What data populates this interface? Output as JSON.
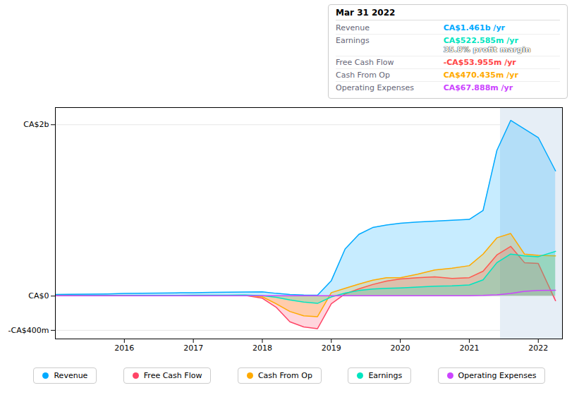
{
  "chart_data": {
    "type": "area",
    "annotations": {
      "heading": "Mar 31 2022",
      "rows": [
        {
          "label": "Revenue",
          "text": "CA$1.461b /yr",
          "color": "#00aaff"
        },
        {
          "label": "Earnings",
          "text": "CA$522.585m /yr",
          "color": "#00e5c0",
          "subtext": "35.8% profit margin",
          "subtext_color": "#ffffff"
        },
        {
          "label": "Free Cash Flow",
          "text": "-CA$53.955m /yr",
          "color": "#ff4444"
        },
        {
          "label": "Cash From Op",
          "text": "CA$470.435m /yr",
          "color": "#ffaa00"
        },
        {
          "label": "Operating Expenses",
          "text": "CA$67.888m /yr",
          "color": "#cc44ff"
        }
      ]
    },
    "x": [
      2015.0,
      2015.2,
      2015.5,
      2015.75,
      2016.0,
      2016.25,
      2016.5,
      2016.75,
      2017.0,
      2017.25,
      2017.5,
      2017.75,
      2018.0,
      2018.2,
      2018.4,
      2018.6,
      2018.8,
      2019.0,
      2019.2,
      2019.4,
      2019.6,
      2019.8,
      2020.0,
      2020.25,
      2020.5,
      2020.75,
      2021.0,
      2021.2,
      2021.4,
      2021.6,
      2021.8,
      2022.0,
      2022.25
    ],
    "series": [
      {
        "name": "Revenue",
        "color": "#00aaff",
        "type": "area",
        "values": [
          18,
          20,
          22,
          25,
          30,
          33,
          36,
          38,
          40,
          43,
          46,
          48,
          50,
          32,
          18,
          12,
          10,
          180,
          550,
          720,
          800,
          830,
          850,
          865,
          875,
          885,
          895,
          1000,
          1700,
          2050,
          1950,
          1850,
          1461
        ]
      },
      {
        "name": "Free Cash Flow",
        "color": "#ff4466",
        "type": "area",
        "values": [
          4,
          5,
          5,
          6,
          6,
          7,
          7,
          7,
          8,
          8,
          8,
          9,
          -25,
          -130,
          -300,
          -360,
          -380,
          -90,
          25,
          85,
          135,
          175,
          200,
          215,
          225,
          205,
          215,
          290,
          480,
          580,
          390,
          380,
          -54
        ]
      },
      {
        "name": "Cash From Op",
        "color": "#ffaa00",
        "type": "area",
        "values": [
          4,
          5,
          5,
          6,
          6,
          7,
          7,
          7,
          8,
          8,
          9,
          9,
          -8,
          -90,
          -180,
          -230,
          -240,
          40,
          90,
          140,
          185,
          215,
          215,
          255,
          305,
          325,
          355,
          490,
          680,
          730,
          490,
          475,
          470
        ]
      },
      {
        "name": "Earnings",
        "color": "#00e5c0",
        "type": "area",
        "values": [
          4,
          5,
          6,
          7,
          7,
          8,
          9,
          9,
          10,
          11,
          11,
          12,
          5,
          -15,
          -45,
          -70,
          -85,
          -10,
          35,
          65,
          82,
          90,
          95,
          105,
          115,
          120,
          130,
          190,
          390,
          490,
          470,
          460,
          522
        ]
      },
      {
        "name": "Operating Expenses",
        "color": "#cc44ff",
        "type": "line",
        "values": [
          4,
          4,
          4,
          4,
          4,
          4,
          4,
          4,
          4,
          4,
          4,
          4,
          4,
          4,
          4,
          4,
          4,
          4,
          4,
          4,
          4,
          4,
          4,
          4,
          4,
          4,
          5,
          8,
          15,
          30,
          55,
          65,
          68
        ]
      }
    ],
    "xlim": [
      2015.0,
      2022.35
    ],
    "ylim": [
      -500,
      2200
    ],
    "xticks": [
      2016,
      2017,
      2018,
      2019,
      2020,
      2021,
      2022
    ],
    "yticks": [
      {
        "value": -400,
        "label": "-CA$400m"
      },
      {
        "value": 0,
        "label": "CA$0"
      },
      {
        "value": 2000,
        "label": "CA$2b"
      }
    ],
    "grid": true,
    "legend": "bottom",
    "highlight_x": [
      2021.45,
      2022.35
    ]
  }
}
